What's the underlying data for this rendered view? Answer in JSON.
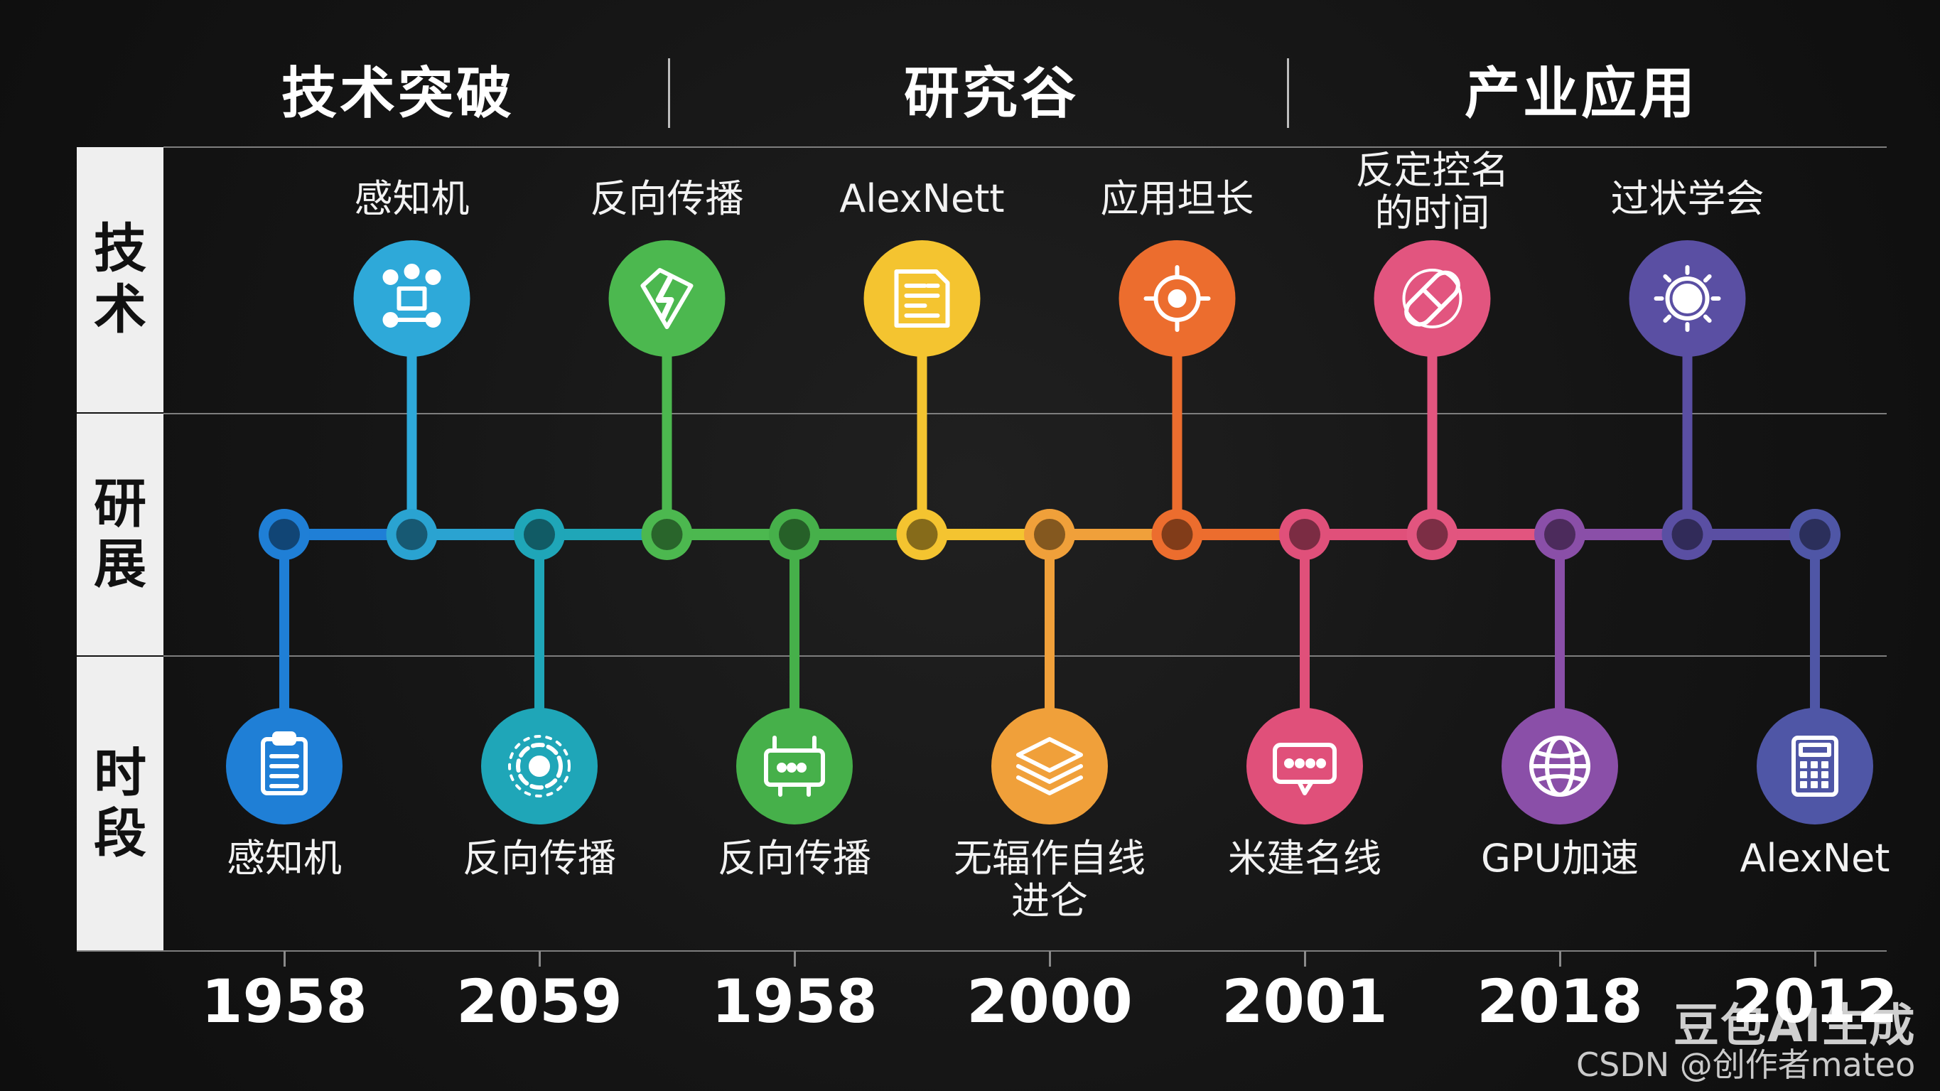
{
  "headers": [
    "技术突破",
    "研究谷",
    "产业应用"
  ],
  "row_labels": [
    {
      "chars": [
        "技",
        "术"
      ]
    },
    {
      "chars": [
        "研",
        "展"
      ]
    },
    {
      "chars": [
        "时",
        "段"
      ]
    }
  ],
  "top_items": [
    {
      "label": "感知机",
      "color": "#2ea9d9",
      "icon": "network-nodes-icon"
    },
    {
      "label": "反向传播",
      "color": "#4cb84f",
      "icon": "lightning-shield-icon"
    },
    {
      "label": "AlexNett",
      "color": "#f4c430",
      "icon": "document-list-icon"
    },
    {
      "label": "应用坦长",
      "color": "#ec6d2e",
      "icon": "target-icon"
    },
    {
      "label": "反定控名\n的时间",
      "color": "#e2557f",
      "icon": "capsule-icon"
    },
    {
      "label": "过状学会",
      "color": "#5a4fa3",
      "icon": "sun-gear-icon"
    }
  ],
  "bottom_items": [
    {
      "label": "感知机",
      "color": "#1f7fd6",
      "icon": "clipboard-icon"
    },
    {
      "label": "反向传播",
      "color": "#1fa6b8",
      "icon": "orbit-icon"
    },
    {
      "label": "反向传播",
      "color": "#46b04a",
      "icon": "circuit-board-icon"
    },
    {
      "label": "无辐作自线\n进仑",
      "color": "#f0a03a",
      "icon": "layers-icon"
    },
    {
      "label": "米建名线",
      "color": "#e0507a",
      "icon": "chat-bubble-icon"
    },
    {
      "label": "GPU加速",
      "color": "#8a4fa8",
      "icon": "globe-icon"
    },
    {
      "label": "AlexNet",
      "color": "#4f56a6",
      "icon": "calculator-icon"
    }
  ],
  "years": [
    "1958",
    "2059",
    "1958",
    "2000",
    "2001",
    "2018",
    "2012"
  ],
  "timeline_colors": [
    "#1f7fd6",
    "#2aa3d1",
    "#1fa6b8",
    "#4cb84f",
    "#46b04a",
    "#f4c430",
    "#f0a03a",
    "#ec6d2e",
    "#e0507a",
    "#e2557f",
    "#8a4fa8",
    "#5a4fa3",
    "#4f56a6"
  ],
  "watermark": {
    "brand": "豆包AI生成",
    "credit": "CSDN @创作者mateo"
  }
}
